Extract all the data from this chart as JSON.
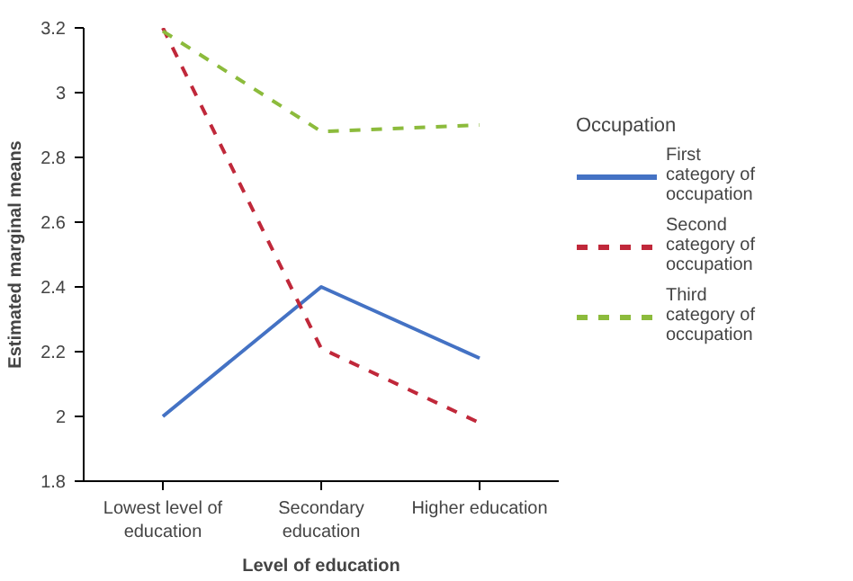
{
  "chart_data": {
    "type": "line",
    "xlabel": "Level of education",
    "ylabel": "Estimated marginal means",
    "legend_title": "Occupation",
    "categories": [
      "Lowest level of education",
      "Secondary education",
      "Higher education"
    ],
    "ylim": [
      1.8,
      3.2
    ],
    "yticks": [
      1.8,
      2,
      2.2,
      2.4,
      2.6,
      2.8,
      3,
      3.2
    ],
    "grid": false,
    "legend": "right",
    "series": [
      {
        "name": "First category of occupation",
        "color": "#4472c4",
        "line_style": "solid",
        "values": [
          2.0,
          2.4,
          2.18
        ]
      },
      {
        "name": "Second category of occupation",
        "color": "#c0283a",
        "line_style": "dashed",
        "values": [
          3.2,
          2.21,
          1.98
        ]
      },
      {
        "name": "Third category of occupation",
        "color": "#8cbb3c",
        "line_style": "dashed",
        "values": [
          3.19,
          2.88,
          2.9
        ]
      }
    ]
  }
}
